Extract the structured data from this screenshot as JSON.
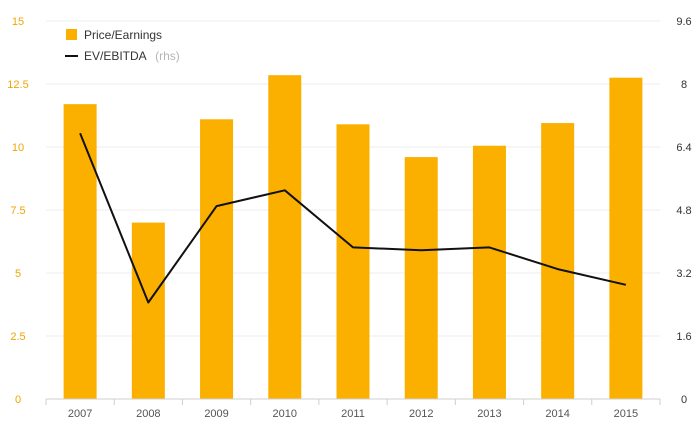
{
  "chart_data": {
    "type": "bar",
    "categories": [
      "2007",
      "2008",
      "2009",
      "2010",
      "2011",
      "2012",
      "2013",
      "2014",
      "2015"
    ],
    "series": [
      {
        "name": "Price/Earnings",
        "type": "bar",
        "axis": "left",
        "color": "#fbb000",
        "values": [
          11.7,
          7.0,
          11.1,
          12.85,
          10.9,
          9.6,
          10.05,
          10.95,
          12.75
        ]
      },
      {
        "name": "EV/EBITDA",
        "type": "line",
        "axis": "right",
        "color": "#111111",
        "values": [
          6.75,
          2.45,
          4.9,
          5.3,
          3.85,
          3.78,
          3.85,
          3.3,
          2.9
        ]
      }
    ],
    "legend_note": "(rhs)",
    "y_left": {
      "lim": [
        0,
        15
      ],
      "ticks": [
        0,
        2.5,
        5,
        7.5,
        10,
        12.5,
        15
      ],
      "tick_labels": [
        "0",
        "2.5",
        "5",
        "7.5",
        "10",
        "12.5",
        "15"
      ],
      "label_color": "#f0a500"
    },
    "y_right": {
      "lim": [
        0,
        9.6
      ],
      "ticks": [
        0,
        1.6,
        3.2,
        4.8,
        6.4,
        8,
        9.6
      ],
      "tick_labels": [
        "0",
        "1.6",
        "3.2",
        "4.8",
        "6.4",
        "8",
        "9.6"
      ]
    },
    "grid": true,
    "legend_position": "top-left"
  }
}
